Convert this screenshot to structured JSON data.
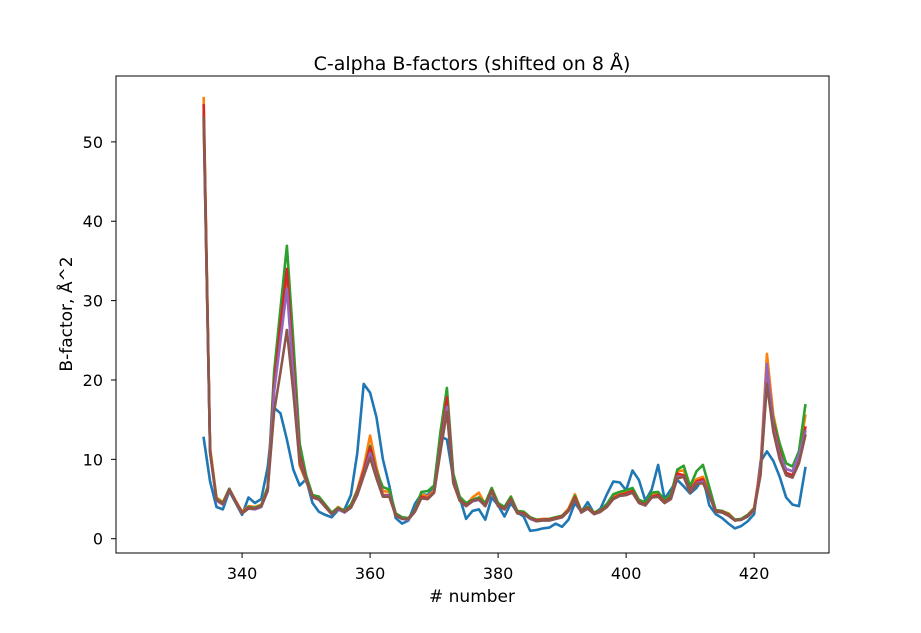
{
  "chart_data": {
    "type": "line",
    "title": "C-alpha B-factors (shifted on 8 Å)",
    "xlabel": "# number",
    "ylabel": "B-factor, Å^2",
    "xlim": [
      320.3,
      431.7
    ],
    "ylim": [
      -1.8,
      58.3
    ],
    "xticks": [
      340,
      360,
      380,
      400,
      420
    ],
    "yticks": [
      0,
      10,
      20,
      30,
      40,
      50
    ],
    "grid": false,
    "legend": "none",
    "x": [
      334,
      335,
      336,
      337,
      338,
      339,
      340,
      341,
      342,
      343,
      344,
      345,
      346,
      347,
      348,
      349,
      350,
      351,
      352,
      353,
      354,
      355,
      356,
      357,
      358,
      359,
      360,
      361,
      362,
      363,
      364,
      365,
      366,
      367,
      368,
      369,
      370,
      371,
      372,
      373,
      374,
      375,
      376,
      377,
      378,
      379,
      380,
      381,
      382,
      383,
      384,
      385,
      386,
      387,
      388,
      389,
      390,
      391,
      392,
      393,
      394,
      395,
      396,
      397,
      398,
      399,
      400,
      401,
      402,
      403,
      404,
      405,
      406,
      407,
      408,
      409,
      410,
      411,
      412,
      413,
      414,
      415,
      416,
      417,
      418,
      419,
      420,
      421,
      422,
      423,
      424,
      425,
      426,
      427,
      428
    ],
    "series": [
      {
        "color": "#1f77b4",
        "values": [
          12.7,
          7.2,
          4.0,
          3.7,
          6.0,
          4.5,
          3.0,
          5.2,
          4.5,
          5.0,
          9.0,
          16.5,
          15.8,
          12.5,
          8.7,
          6.7,
          7.5,
          4.5,
          3.4,
          3.0,
          2.7,
          3.6,
          3.7,
          5.5,
          10.8,
          19.5,
          18.4,
          15.3,
          10.0,
          6.7,
          2.6,
          1.9,
          2.3,
          4.4,
          5.6,
          5.5,
          6.4,
          12.9,
          12.5,
          7.6,
          5.2,
          2.5,
          3.5,
          3.7,
          2.4,
          5.2,
          4.2,
          2.8,
          4.5,
          3.3,
          2.8,
          1.0,
          1.1,
          1.3,
          1.4,
          1.9,
          1.5,
          2.4,
          4.5,
          3.4,
          4.6,
          3.2,
          3.8,
          5.6,
          7.2,
          7.1,
          6.1,
          8.6,
          7.4,
          4.8,
          6.2,
          9.3,
          5.0,
          6.2,
          7.4,
          6.6,
          5.7,
          6.4,
          7.7,
          4.2,
          3.1,
          2.6,
          1.9,
          1.3,
          1.6,
          2.2,
          3.1,
          9.7,
          11.0,
          9.8,
          7.8,
          5.2,
          4.3,
          4.1,
          8.9
        ]
      },
      {
        "color": "#ff7f0e",
        "values": [
          55.5,
          11.5,
          5.2,
          4.6,
          6.3,
          4.8,
          3.4,
          4.1,
          4.0,
          4.3,
          6.5,
          20.0,
          26.0,
          32.5,
          20.0,
          9.2,
          7.2,
          5.5,
          5.3,
          4.2,
          3.2,
          4.0,
          3.5,
          4.2,
          6.2,
          9.0,
          13.0,
          9.0,
          6.0,
          5.9,
          3.2,
          2.6,
          2.5,
          3.6,
          5.6,
          5.3,
          6.1,
          12.0,
          17.0,
          7.8,
          5.0,
          4.3,
          5.2,
          5.8,
          4.3,
          6.3,
          4.4,
          4.0,
          5.3,
          3.4,
          3.4,
          2.7,
          2.4,
          2.5,
          2.5,
          2.7,
          2.9,
          3.8,
          5.6,
          3.5,
          4.0,
          3.3,
          3.6,
          4.2,
          5.3,
          5.8,
          5.9,
          6.3,
          4.8,
          4.5,
          5.6,
          5.7,
          4.8,
          5.4,
          8.5,
          8.6,
          6.4,
          7.5,
          7.8,
          6.0,
          3.6,
          3.5,
          3.2,
          2.4,
          2.5,
          3.0,
          3.9,
          9.0,
          23.3,
          15.6,
          11.8,
          8.3,
          7.8,
          10.5,
          15.5
        ]
      },
      {
        "color": "#2ca02c",
        "values": [
          53.7,
          11.0,
          5.0,
          4.5,
          6.3,
          4.7,
          3.3,
          4.0,
          3.9,
          4.2,
          6.5,
          21.0,
          29.0,
          36.9,
          25.0,
          12.0,
          8.0,
          5.5,
          5.3,
          4.3,
          3.3,
          3.9,
          3.5,
          4.3,
          6.0,
          8.5,
          11.7,
          8.5,
          6.5,
          6.2,
          3.2,
          2.7,
          2.6,
          3.6,
          5.9,
          6.0,
          6.7,
          13.5,
          19.0,
          8.2,
          5.3,
          4.5,
          4.9,
          5.2,
          4.5,
          6.4,
          4.5,
          4.0,
          5.3,
          3.5,
          3.4,
          2.7,
          2.4,
          2.4,
          2.5,
          2.7,
          2.9,
          3.6,
          5.4,
          3.5,
          4.0,
          3.3,
          3.6,
          4.4,
          5.6,
          5.9,
          6.1,
          6.4,
          4.9,
          4.6,
          5.8,
          5.9,
          4.9,
          5.6,
          8.7,
          9.2,
          6.6,
          8.5,
          9.3,
          6.5,
          3.6,
          3.5,
          3.1,
          2.4,
          2.5,
          3.0,
          3.8,
          8.5,
          21.0,
          15.0,
          12.0,
          9.5,
          9.1,
          11.0,
          16.8
        ]
      },
      {
        "color": "#d62728",
        "values": [
          54.6,
          11.0,
          4.9,
          4.4,
          6.2,
          4.7,
          3.3,
          3.9,
          3.8,
          4.1,
          6.2,
          19.5,
          27.0,
          34.0,
          22.0,
          10.5,
          7.5,
          5.3,
          5.0,
          4.1,
          3.1,
          3.8,
          3.4,
          4.0,
          5.8,
          8.5,
          11.5,
          8.2,
          5.5,
          5.5,
          3.0,
          2.5,
          2.5,
          3.5,
          5.3,
          5.1,
          5.9,
          11.8,
          17.8,
          7.5,
          4.9,
          4.2,
          4.8,
          5.0,
          4.2,
          6.1,
          4.2,
          3.8,
          5.0,
          3.3,
          3.2,
          2.6,
          2.3,
          2.4,
          2.4,
          2.6,
          2.8,
          3.6,
          5.2,
          3.4,
          3.9,
          3.2,
          3.5,
          4.1,
          5.1,
          5.5,
          5.7,
          6.0,
          4.6,
          4.3,
          5.3,
          5.5,
          4.6,
          5.2,
          8.2,
          8.0,
          6.1,
          7.2,
          7.5,
          5.6,
          3.5,
          3.4,
          3.0,
          2.3,
          2.4,
          2.9,
          3.7,
          8.7,
          21.5,
          14.5,
          11.0,
          8.3,
          8.0,
          10.0,
          14.0
        ]
      },
      {
        "color": "#9467bd",
        "values": [
          52.5,
          10.8,
          4.8,
          4.3,
          6.1,
          4.6,
          3.2,
          3.8,
          3.7,
          4.0,
          6.0,
          18.5,
          25.0,
          31.5,
          20.5,
          9.8,
          7.3,
          5.2,
          4.9,
          4.0,
          3.1,
          3.7,
          3.3,
          3.9,
          5.6,
          8.0,
          10.8,
          7.8,
          5.4,
          5.4,
          2.9,
          2.5,
          2.4,
          3.4,
          5.1,
          5.0,
          5.8,
          11.3,
          16.6,
          7.2,
          4.8,
          4.1,
          4.7,
          4.9,
          4.1,
          5.9,
          4.1,
          3.7,
          4.9,
          3.2,
          3.1,
          2.5,
          2.2,
          2.3,
          2.3,
          2.5,
          2.7,
          3.5,
          5.0,
          3.3,
          3.8,
          3.1,
          3.4,
          4.0,
          5.0,
          5.4,
          5.5,
          5.8,
          4.5,
          4.2,
          5.2,
          5.3,
          4.5,
          5.0,
          7.8,
          7.8,
          5.9,
          7.0,
          7.2,
          5.5,
          3.4,
          3.3,
          2.9,
          2.3,
          2.4,
          2.8,
          3.6,
          8.3,
          22.0,
          14.0,
          10.5,
          8.8,
          8.5,
          10.5,
          13.5
        ]
      },
      {
        "color": "#8c564b",
        "values": [
          53.0,
          10.9,
          4.9,
          4.4,
          6.2,
          4.6,
          3.2,
          3.8,
          3.8,
          4.1,
          6.1,
          16.0,
          21.0,
          26.3,
          18.5,
          9.5,
          7.4,
          5.2,
          5.0,
          4.0,
          3.1,
          3.8,
          3.4,
          3.9,
          5.5,
          7.9,
          10.2,
          7.6,
          5.3,
          5.3,
          2.9,
          2.5,
          2.5,
          3.4,
          5.1,
          5.0,
          5.8,
          11.0,
          16.0,
          7.0,
          4.8,
          4.1,
          4.8,
          5.0,
          4.1,
          6.0,
          4.1,
          3.7,
          4.9,
          3.2,
          3.1,
          2.6,
          2.2,
          2.3,
          2.3,
          2.5,
          2.7,
          3.5,
          5.0,
          3.3,
          3.8,
          3.1,
          3.4,
          4.0,
          5.0,
          5.4,
          5.5,
          5.8,
          4.5,
          4.2,
          5.2,
          5.3,
          4.5,
          5.0,
          7.6,
          7.8,
          5.8,
          6.9,
          7.0,
          5.4,
          3.4,
          3.3,
          2.9,
          2.3,
          2.4,
          2.8,
          3.6,
          8.0,
          19.5,
          13.5,
          10.0,
          8.0,
          7.7,
          9.5,
          13.0
        ]
      }
    ]
  }
}
